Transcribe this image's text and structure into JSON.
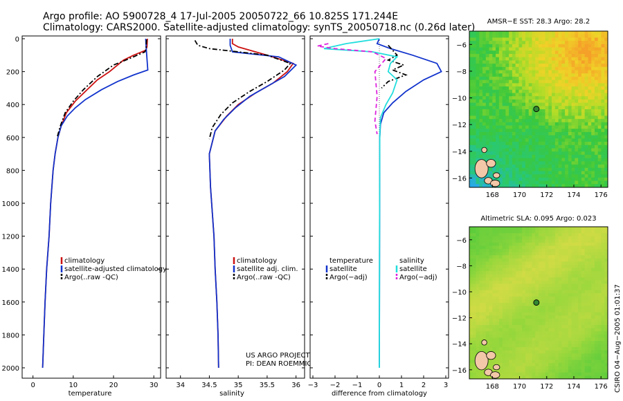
{
  "title": {
    "line1": "Argo profile: AO 5900728_4 17-Jul-2005 20050722_66 10.825S 171.244E",
    "line2": "Climatology: CARS2000. Satellite-adjusted climatology: synTS_20050718.nc (0.26d later)"
  },
  "colors": {
    "climatology": "#cc1111",
    "satellite": "#1133cc",
    "argo": "#000000",
    "sal_satellite": "#22dddd",
    "sal_argo": "#dd22dd",
    "circle": "#338833"
  },
  "chart_data": [
    {
      "type": "line",
      "xlabel": "temperature",
      "ylabel": "",
      "xlim": [
        -2,
        31
      ],
      "ylim": [
        2050,
        0
      ],
      "xticks": [
        "0",
        "10",
        "20",
        "30"
      ],
      "yticks": [
        "0",
        "200",
        "400",
        "600",
        "800",
        "1000",
        "1200",
        "1400",
        "1600",
        "1800",
        "2000"
      ],
      "legend": [
        "climatology",
        "satellite-adjusted climatology",
        "Argo(..raw -QC)"
      ],
      "series": [
        {
          "name": "climatology",
          "color": "#cc1111",
          "dash": "",
          "x": [
            28.4,
            28.3,
            28.0,
            25.0,
            22.5,
            19.0,
            16.0,
            13.0,
            10.5,
            8.3,
            7.0,
            6.2,
            5.5,
            5.0,
            4.4,
            4.0,
            3.4,
            3.0,
            2.7,
            2.4
          ],
          "y": [
            0,
            50,
            70,
            100,
            130,
            200,
            250,
            320,
            380,
            450,
            530,
            600,
            700,
            800,
            1000,
            1200,
            1400,
            1600,
            1800,
            2000
          ]
        },
        {
          "name": "satellite",
          "color": "#1133cc",
          "dash": "",
          "x": [
            28.0,
            28.1,
            28.5,
            25.0,
            21.0,
            17.0,
            13.0,
            10.5,
            8.5,
            7.0,
            6.2,
            5.5,
            5.0,
            4.4,
            4.0,
            3.4,
            3.0,
            2.7,
            2.4
          ],
          "y": [
            0,
            50,
            190,
            220,
            260,
            310,
            370,
            420,
            470,
            530,
            600,
            700,
            800,
            1000,
            1200,
            1400,
            1600,
            1800,
            2000
          ]
        },
        {
          "name": "Argo(..raw -QC)",
          "color": "#000000",
          "dash": "7,3,2,3",
          "x": [
            28.2,
            28.1,
            27.8,
            24.0,
            20.0,
            16.0,
            12.5,
            10.0,
            8.0,
            6.8,
            6.0
          ],
          "y": [
            5,
            60,
            80,
            120,
            160,
            230,
            310,
            380,
            450,
            530,
            600
          ]
        }
      ]
    },
    {
      "type": "line",
      "xlabel": "salinity",
      "ylabel": "",
      "xlim": [
        33.8,
        36.1
      ],
      "ylim": [
        2050,
        0
      ],
      "xticks": [
        "34",
        "34.5",
        "35",
        "35.5",
        "36"
      ],
      "yticks": [],
      "legend": [
        "climatology",
        "satellite adj. clim.",
        "Argo(..raw -QC)"
      ],
      "series": [
        {
          "name": "climatology",
          "color": "#cc1111",
          "dash": "",
          "x": [
            34.9,
            34.9,
            35.0,
            35.5,
            35.95,
            35.85,
            35.6,
            35.3,
            35.0,
            34.8,
            34.6,
            34.5,
            34.52,
            34.58,
            34.6,
            34.63,
            34.65,
            34.66
          ],
          "y": [
            0,
            30,
            50,
            100,
            150,
            200,
            270,
            330,
            400,
            470,
            560,
            700,
            900,
            1200,
            1400,
            1600,
            1800,
            2000
          ]
        },
        {
          "name": "satellite",
          "color": "#1133cc",
          "dash": "",
          "x": [
            34.86,
            34.86,
            34.9,
            35.7,
            36.0,
            35.8,
            35.5,
            35.2,
            34.95,
            34.75,
            34.6,
            34.5,
            34.52,
            34.58,
            34.6,
            34.63,
            34.65,
            34.66
          ],
          "y": [
            0,
            40,
            80,
            110,
            160,
            230,
            290,
            350,
            420,
            490,
            560,
            700,
            900,
            1200,
            1400,
            1600,
            1800,
            2000
          ]
        },
        {
          "name": "Argo(..raw -QC)",
          "color": "#000000",
          "dash": "7,3,2,3",
          "x": [
            34.25,
            34.3,
            34.5,
            35.0,
            35.5,
            35.9,
            35.8,
            35.5,
            35.2,
            34.9,
            34.7,
            34.55,
            34.5
          ],
          "y": [
            10,
            40,
            60,
            80,
            100,
            150,
            190,
            260,
            320,
            390,
            460,
            540,
            610
          ]
        }
      ]
    },
    {
      "type": "line",
      "xlabel": "difference from climatology",
      "ylabel": "",
      "xlim": [
        -3,
        3
      ],
      "ylim": [
        2050,
        0
      ],
      "xticks": [
        "−3",
        "−2",
        "−1",
        "0",
        "1",
        "2",
        "3"
      ],
      "yticks": [],
      "legend": [
        "temperature",
        "satellite",
        "Argo(−adj)",
        "salinity",
        "satellite",
        "Argo(−adj)"
      ],
      "series": [
        {
          "name": "satellite",
          "color": "#1133cc",
          "dash": "",
          "x": [
            0,
            -0.1,
            0.5,
            1.5,
            2.6,
            2.8,
            2.0,
            1.2,
            0.6,
            0.2,
            0.05,
            0.02,
            0
          ],
          "y": [
            0,
            30,
            60,
            100,
            150,
            200,
            250,
            320,
            390,
            450,
            520,
            600,
            2000
          ]
        },
        {
          "name": "Argo(−adj)",
          "color": "#000000",
          "dash": "7,3,2,3",
          "x": [
            0.4,
            0.6,
            0.8,
            0.4,
            1.1,
            0.6,
            1.2,
            0.4,
            0.1
          ],
          "y": [
            40,
            70,
            100,
            130,
            160,
            190,
            220,
            260,
            300
          ]
        },
        {
          "name": "satellite",
          "color": "#22dddd",
          "dash": "",
          "x": [
            0,
            -1.5,
            -2.5,
            -0.3,
            0.8,
            0.5,
            0.4,
            0.8,
            0.6,
            0.3,
            0.05,
            0.02,
            0
          ],
          "y": [
            0,
            30,
            60,
            80,
            110,
            150,
            200,
            250,
            330,
            400,
            480,
            600,
            2000
          ]
        },
        {
          "name": "Argo(−adj)",
          "color": "#dd22dd",
          "dash": "6,4",
          "x": [
            -2.3,
            -2.8,
            -2.0,
            -0.3,
            0.3,
            -0.2,
            -0.1,
            -0.2,
            -0.1
          ],
          "y": [
            30,
            45,
            60,
            80,
            120,
            200,
            350,
            500,
            580
          ]
        }
      ]
    },
    {
      "type": "heatmap",
      "title": "AMSR−E SST: 28.3 Argo: 28.2",
      "xlim": [
        166.3,
        176.5
      ],
      "ylim": [
        -16.7,
        -5
      ],
      "xticks": [
        "168",
        "170",
        "172",
        "174",
        "176"
      ],
      "yticks": [
        "−6",
        "−8",
        "−10",
        "−12",
        "−14",
        "−16"
      ],
      "marker": {
        "lon": 171.24,
        "lat": -10.83
      }
    },
    {
      "type": "heatmap",
      "title": "Altimetric SLA: 0.095 Argo: 0.023",
      "xlim": [
        166.3,
        176.5
      ],
      "ylim": [
        -16.7,
        -5
      ],
      "xticks": [
        "168",
        "170",
        "172",
        "174",
        "176"
      ],
      "yticks": [
        "−6",
        "−8",
        "−10",
        "−12",
        "−14",
        "−16"
      ],
      "marker": {
        "lon": 171.24,
        "lat": -10.83
      }
    }
  ],
  "project": {
    "line1": "US ARGO PROJECT",
    "line2": "PI: DEAN ROEMMICH"
  },
  "credit": "CSIRO 04−Aug−2005 01:01:37"
}
